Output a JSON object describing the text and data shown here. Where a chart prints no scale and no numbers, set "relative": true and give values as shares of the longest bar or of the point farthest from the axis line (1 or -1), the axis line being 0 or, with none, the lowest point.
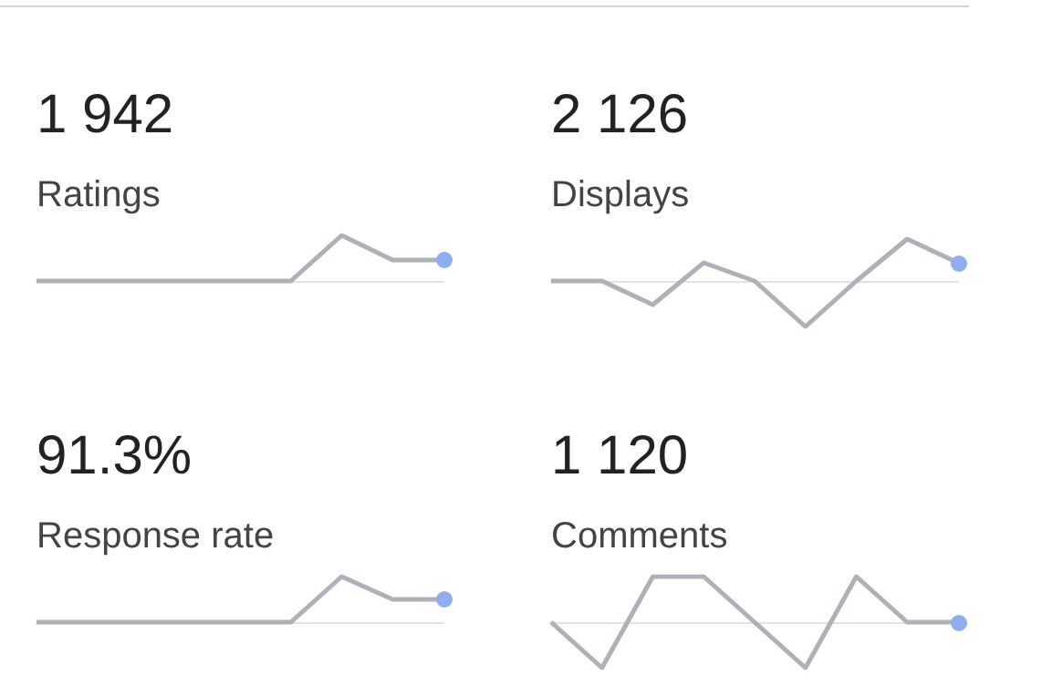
{
  "chart_data": [
    {
      "type": "line",
      "title": "1 942",
      "subtitle": "Ratings",
      "relative": true,
      "marker": "none",
      "categories": [
        null,
        null,
        null,
        null,
        null,
        null,
        null,
        null,
        null
      ],
      "series": [
        {
          "color": "#adb1b8",
          "values": [
            0,
            0,
            0,
            0,
            0,
            0,
            1,
            0.46,
            0.46
          ]
        }
      ]
    },
    {
      "type": "line",
      "title": "2 126",
      "subtitle": "Displays",
      "relative": true,
      "marker": "none",
      "categories": [
        null,
        null,
        null,
        null,
        null,
        null,
        null,
        null,
        null
      ],
      "series": [
        {
          "color": "#adb1b8",
          "values": [
            0,
            0,
            -0.52,
            0.4,
            0,
            -1,
            0,
            0.92,
            0.4
          ]
        }
      ]
    },
    {
      "type": "line",
      "title": "91.3%",
      "subtitle": "Response rate",
      "relative": true,
      "marker": "none",
      "categories": [
        null,
        null,
        null,
        null,
        null,
        null,
        null,
        null,
        null
      ],
      "series": [
        {
          "color": "#adb1b8",
          "values": [
            0,
            0,
            0,
            0,
            0,
            0,
            1,
            0.5,
            0.5
          ]
        }
      ]
    },
    {
      "type": "line",
      "title": "1 120",
      "subtitle": "Comments",
      "relative": true,
      "marker": "none",
      "categories": [
        null,
        null,
        null,
        null,
        null,
        null,
        null,
        null,
        null
      ],
      "series": [
        {
          "color": "#adb1b8",
          "values": [
            0,
            -1,
            1,
            1,
            0,
            -1,
            1,
            0,
            0
          ]
        }
      ]
    }
  ]
}
